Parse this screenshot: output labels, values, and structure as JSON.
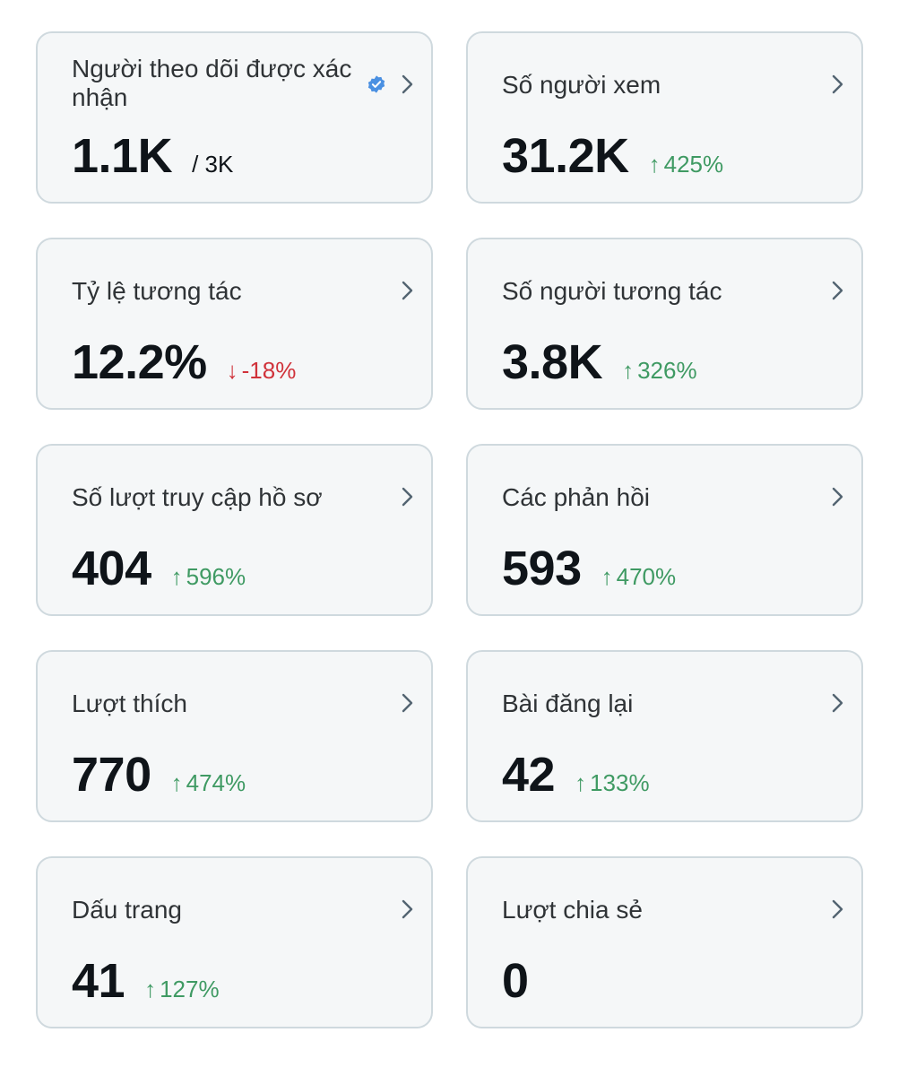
{
  "colors": {
    "card_background": "#f5f7f8",
    "card_border": "#cfd9de",
    "positive": "#3f9a63",
    "negative": "#d0323a",
    "verified_badge": "#4a90e2"
  },
  "cards": [
    {
      "title": "Người theo dõi được xác nhận",
      "value": "1.1K",
      "total": "/ 3K",
      "verified_icon": "verified-badge-icon"
    },
    {
      "title": "Số người xem",
      "value": "31.2K",
      "arrow": "↑",
      "change": "425%",
      "direction": "up"
    },
    {
      "title": "Tỷ lệ tương tác",
      "value": "12.2%",
      "arrow": "↓",
      "change": "-18%",
      "direction": "down"
    },
    {
      "title": "Số người tương tác",
      "value": "3.8K",
      "arrow": "↑",
      "change": "326%",
      "direction": "up"
    },
    {
      "title": "Số lượt truy cập hồ sơ",
      "value": "404",
      "arrow": "↑",
      "change": "596%",
      "direction": "up"
    },
    {
      "title": "Các phản hồi",
      "value": "593",
      "arrow": "↑",
      "change": "470%",
      "direction": "up"
    },
    {
      "title": "Lượt thích",
      "value": "770",
      "arrow": "↑",
      "change": "474%",
      "direction": "up"
    },
    {
      "title": "Bài đăng lại",
      "value": "42",
      "arrow": "↑",
      "change": "133%",
      "direction": "up"
    },
    {
      "title": "Dấu trang",
      "value": "41",
      "arrow": "↑",
      "change": "127%",
      "direction": "up"
    },
    {
      "title": "Lượt chia sẻ",
      "value": "0"
    }
  ]
}
